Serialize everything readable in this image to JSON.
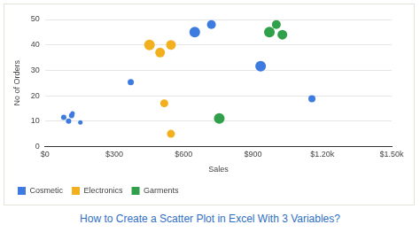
{
  "chart_data": {
    "type": "bubble",
    "title": "How to Create a Scatter Plot in Excel With 3 Variables?",
    "x_label": "Sales",
    "y_label": "No of Orders",
    "xlim": [
      0,
      1500
    ],
    "xticks": [
      {
        "value": 0,
        "label": "$0"
      },
      {
        "value": 300,
        "label": "$300"
      },
      {
        "value": 600,
        "label": "$600"
      },
      {
        "value": 900,
        "label": "$900"
      },
      {
        "value": 1200,
        "label": "$1.20k"
      },
      {
        "value": 1500,
        "label": "$1.50k"
      }
    ],
    "ylim": [
      0,
      50
    ],
    "yticks": [
      0,
      10,
      20,
      30,
      40,
      50
    ],
    "grid": true,
    "legend": "bottom",
    "series": [
      {
        "name": "Cosmetic",
        "color": "#3d7be0",
        "x": [
          81,
          102,
          115,
          119,
          153,
          371,
          648,
          720,
          933,
          1155
        ],
        "values": [
          11.5,
          10,
          12.2,
          13,
          9.5,
          25.3,
          45,
          48,
          31.6,
          18.8
        ],
        "sizes": [
          3,
          3,
          3,
          2.5,
          2.5,
          3.5,
          6,
          5,
          6,
          4
        ]
      },
      {
        "name": "Electronics",
        "color": "#f2b01e",
        "x": [
          452,
          498,
          545,
          516,
          545
        ],
        "values": [
          40,
          37,
          40,
          17,
          5
        ],
        "sizes": [
          6,
          5.5,
          5.5,
          4.5,
          4.5
        ]
      },
      {
        "name": "Garments",
        "color": "#30a04a",
        "x": [
          754,
          971,
          1001,
          1027
        ],
        "values": [
          11,
          45,
          48,
          44
        ],
        "sizes": [
          6,
          6,
          5,
          5.5
        ]
      }
    ]
  }
}
